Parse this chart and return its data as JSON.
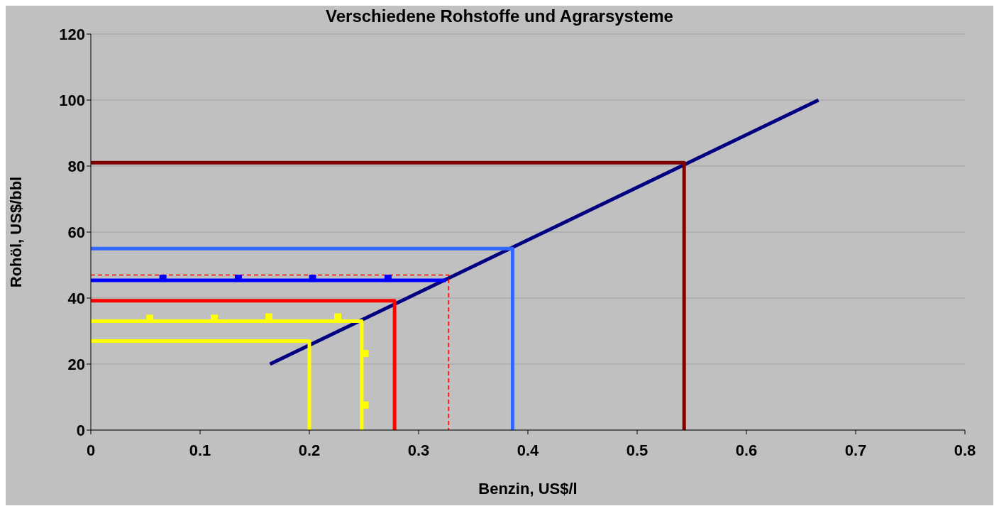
{
  "chart_data": {
    "type": "line",
    "title": "Verschiedene Rohstoffe und Agrarsysteme",
    "xlabel": "Benzin, US$/l",
    "ylabel": "Rohöl, US$/bbl",
    "xlim": [
      0,
      0.8
    ],
    "xticks": [
      0,
      0.1,
      0.2,
      0.3,
      0.4,
      0.5,
      0.6,
      0.7,
      0.8
    ],
    "ylim": [
      0,
      120
    ],
    "yticks": [
      0,
      20,
      40,
      60,
      80,
      100,
      120
    ],
    "grid": "y",
    "marker": "none",
    "series": [
      {
        "color": "#000080",
        "x": [
          0.164,
          0.666
        ],
        "values": [
          20,
          100
        ]
      },
      {
        "color": "#800000",
        "x": [
          0,
          0.543,
          0.543
        ],
        "values": [
          81,
          81,
          0
        ]
      },
      {
        "color": "#3366ff",
        "x": [
          0,
          0.386,
          0.386
        ],
        "values": [
          55,
          55,
          0
        ]
      },
      {
        "color": "#ff0000",
        "line_style": "dashed",
        "x": [
          0,
          0.3275,
          0.3275
        ],
        "values": [
          47,
          47,
          0
        ]
      },
      {
        "color": "#0000ff",
        "x": [
          0,
          0.325
        ],
        "values": [
          45.4,
          45.4
        ]
      },
      {
        "type": "scatter",
        "marker": "square",
        "color": "#0000ff",
        "x": [
          0.066,
          0.135,
          0.203,
          0.272
        ],
        "values": [
          46,
          46,
          46,
          46
        ]
      },
      {
        "color": "#ff0000",
        "x": [
          0,
          0.278,
          0.278
        ],
        "values": [
          39.2,
          39.2,
          0
        ]
      },
      {
        "color": "#ffff00",
        "x": [
          0,
          0.248,
          0.248
        ],
        "values": [
          33,
          33,
          0
        ]
      },
      {
        "type": "scatter",
        "marker": "square",
        "color": "#ffff00",
        "x": [
          0.054,
          0.113,
          0.163,
          0.226,
          0.251,
          0.251
        ],
        "values": [
          33.9,
          33.9,
          34.3,
          34.3,
          23.2,
          7.6
        ]
      },
      {
        "color": "#ffff00",
        "x": [
          0,
          0.2,
          0.2
        ],
        "values": [
          27,
          27,
          0
        ]
      }
    ]
  }
}
